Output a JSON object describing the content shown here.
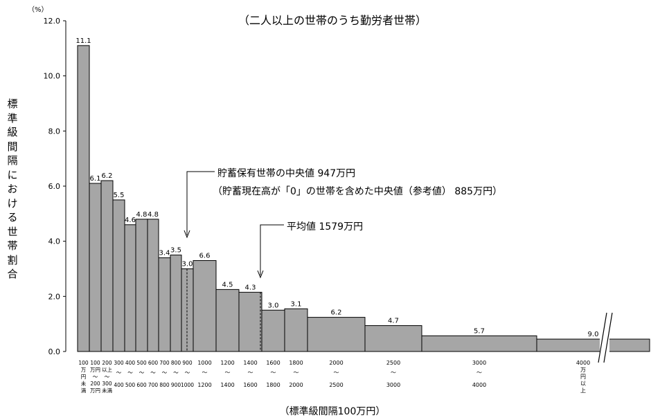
{
  "chart_data": {
    "type": "bar",
    "title": "（二人以上の世帯のうち勤労者世帯）",
    "unit_label": "（%）",
    "ylabel": "標準級間隔における世帯割合",
    "xlabel": "（標準級間隔100万円）",
    "ylim": [
      0,
      12.0
    ],
    "yticks": [
      "0.0",
      "2.0",
      "4.0",
      "6.0",
      "8.0",
      "10.0",
      "12.0"
    ],
    "grid": false,
    "bars": [
      {
        "lower": 0,
        "upper": 100,
        "value": 11.1,
        "label": "11.1"
      },
      {
        "lower": 100,
        "upper": 200,
        "value": 6.1,
        "label": "6.1"
      },
      {
        "lower": 200,
        "upper": 300,
        "value": 6.2,
        "label": "6.2"
      },
      {
        "lower": 300,
        "upper": 400,
        "value": 5.5,
        "label": "5.5"
      },
      {
        "lower": 400,
        "upper": 500,
        "value": 4.6,
        "label": "4.6"
      },
      {
        "lower": 500,
        "upper": 600,
        "value": 4.8,
        "label": "4.8"
      },
      {
        "lower": 600,
        "upper": 700,
        "value": 4.8,
        "label": "4.8"
      },
      {
        "lower": 700,
        "upper": 800,
        "value": 3.4,
        "label": "3.4"
      },
      {
        "lower": 800,
        "upper": 900,
        "value": 3.5,
        "label": "3.5"
      },
      {
        "lower": 900,
        "upper": 1000,
        "value": 3.0,
        "label": "3.0"
      },
      {
        "lower": 1000,
        "upper": 1200,
        "value": 3.3,
        "label": "6.6"
      },
      {
        "lower": 1200,
        "upper": 1400,
        "value": 2.25,
        "label": "4.5"
      },
      {
        "lower": 1400,
        "upper": 1600,
        "value": 2.15,
        "label": "4.3"
      },
      {
        "lower": 1600,
        "upper": 1800,
        "value": 1.5,
        "label": "3.0"
      },
      {
        "lower": 1800,
        "upper": 2000,
        "value": 1.55,
        "label": "3.1"
      },
      {
        "lower": 2000,
        "upper": 2500,
        "value": 1.24,
        "label": "6.2"
      },
      {
        "lower": 2500,
        "upper": 3000,
        "value": 0.94,
        "label": "4.7"
      },
      {
        "lower": 3000,
        "upper": 4000,
        "value": 0.57,
        "label": "5.7"
      },
      {
        "lower": 4000,
        "upper": null,
        "value": 0.45,
        "label": "9.0"
      }
    ],
    "x_tick_labels": [
      [
        "100",
        "万",
        "円",
        "未",
        "満"
      ],
      [
        "100",
        "万円",
        "～",
        "200",
        "万円"
      ],
      [
        "200",
        "以上",
        "～",
        "300",
        "未満"
      ],
      [
        "300",
        "～",
        "400"
      ],
      [
        "400",
        "～",
        "500"
      ],
      [
        "500",
        "～",
        "600"
      ],
      [
        "600",
        "～",
        "700"
      ],
      [
        "700",
        "～",
        "800"
      ],
      [
        "800",
        "～",
        "900"
      ],
      [
        "900",
        "～",
        "1000"
      ],
      [
        "1000",
        "～",
        "1200"
      ],
      [
        "1200",
        "～",
        "1400"
      ],
      [
        "1400",
        "～",
        "1600"
      ],
      [
        "1600",
        "～",
        "1800"
      ],
      [
        "1800",
        "～",
        "2000"
      ],
      [
        "2000",
        "～",
        "2500"
      ],
      [
        "2500",
        "～",
        "3000"
      ],
      [
        "3000",
        "～",
        "4000"
      ],
      [
        "4000",
        "万",
        "円",
        "以",
        "上"
      ]
    ],
    "colors": {
      "bar_fill": "#a6a6a6",
      "bar_stroke": "#000000"
    },
    "annotations": {
      "median_line1": "貯蓄保有世帯の中央値 947万円",
      "median_line2": "（貯蓄現在高が「0」の世帯を含めた中央値（参考値） 885万円）",
      "mean": "平均値 1579万円"
    }
  }
}
